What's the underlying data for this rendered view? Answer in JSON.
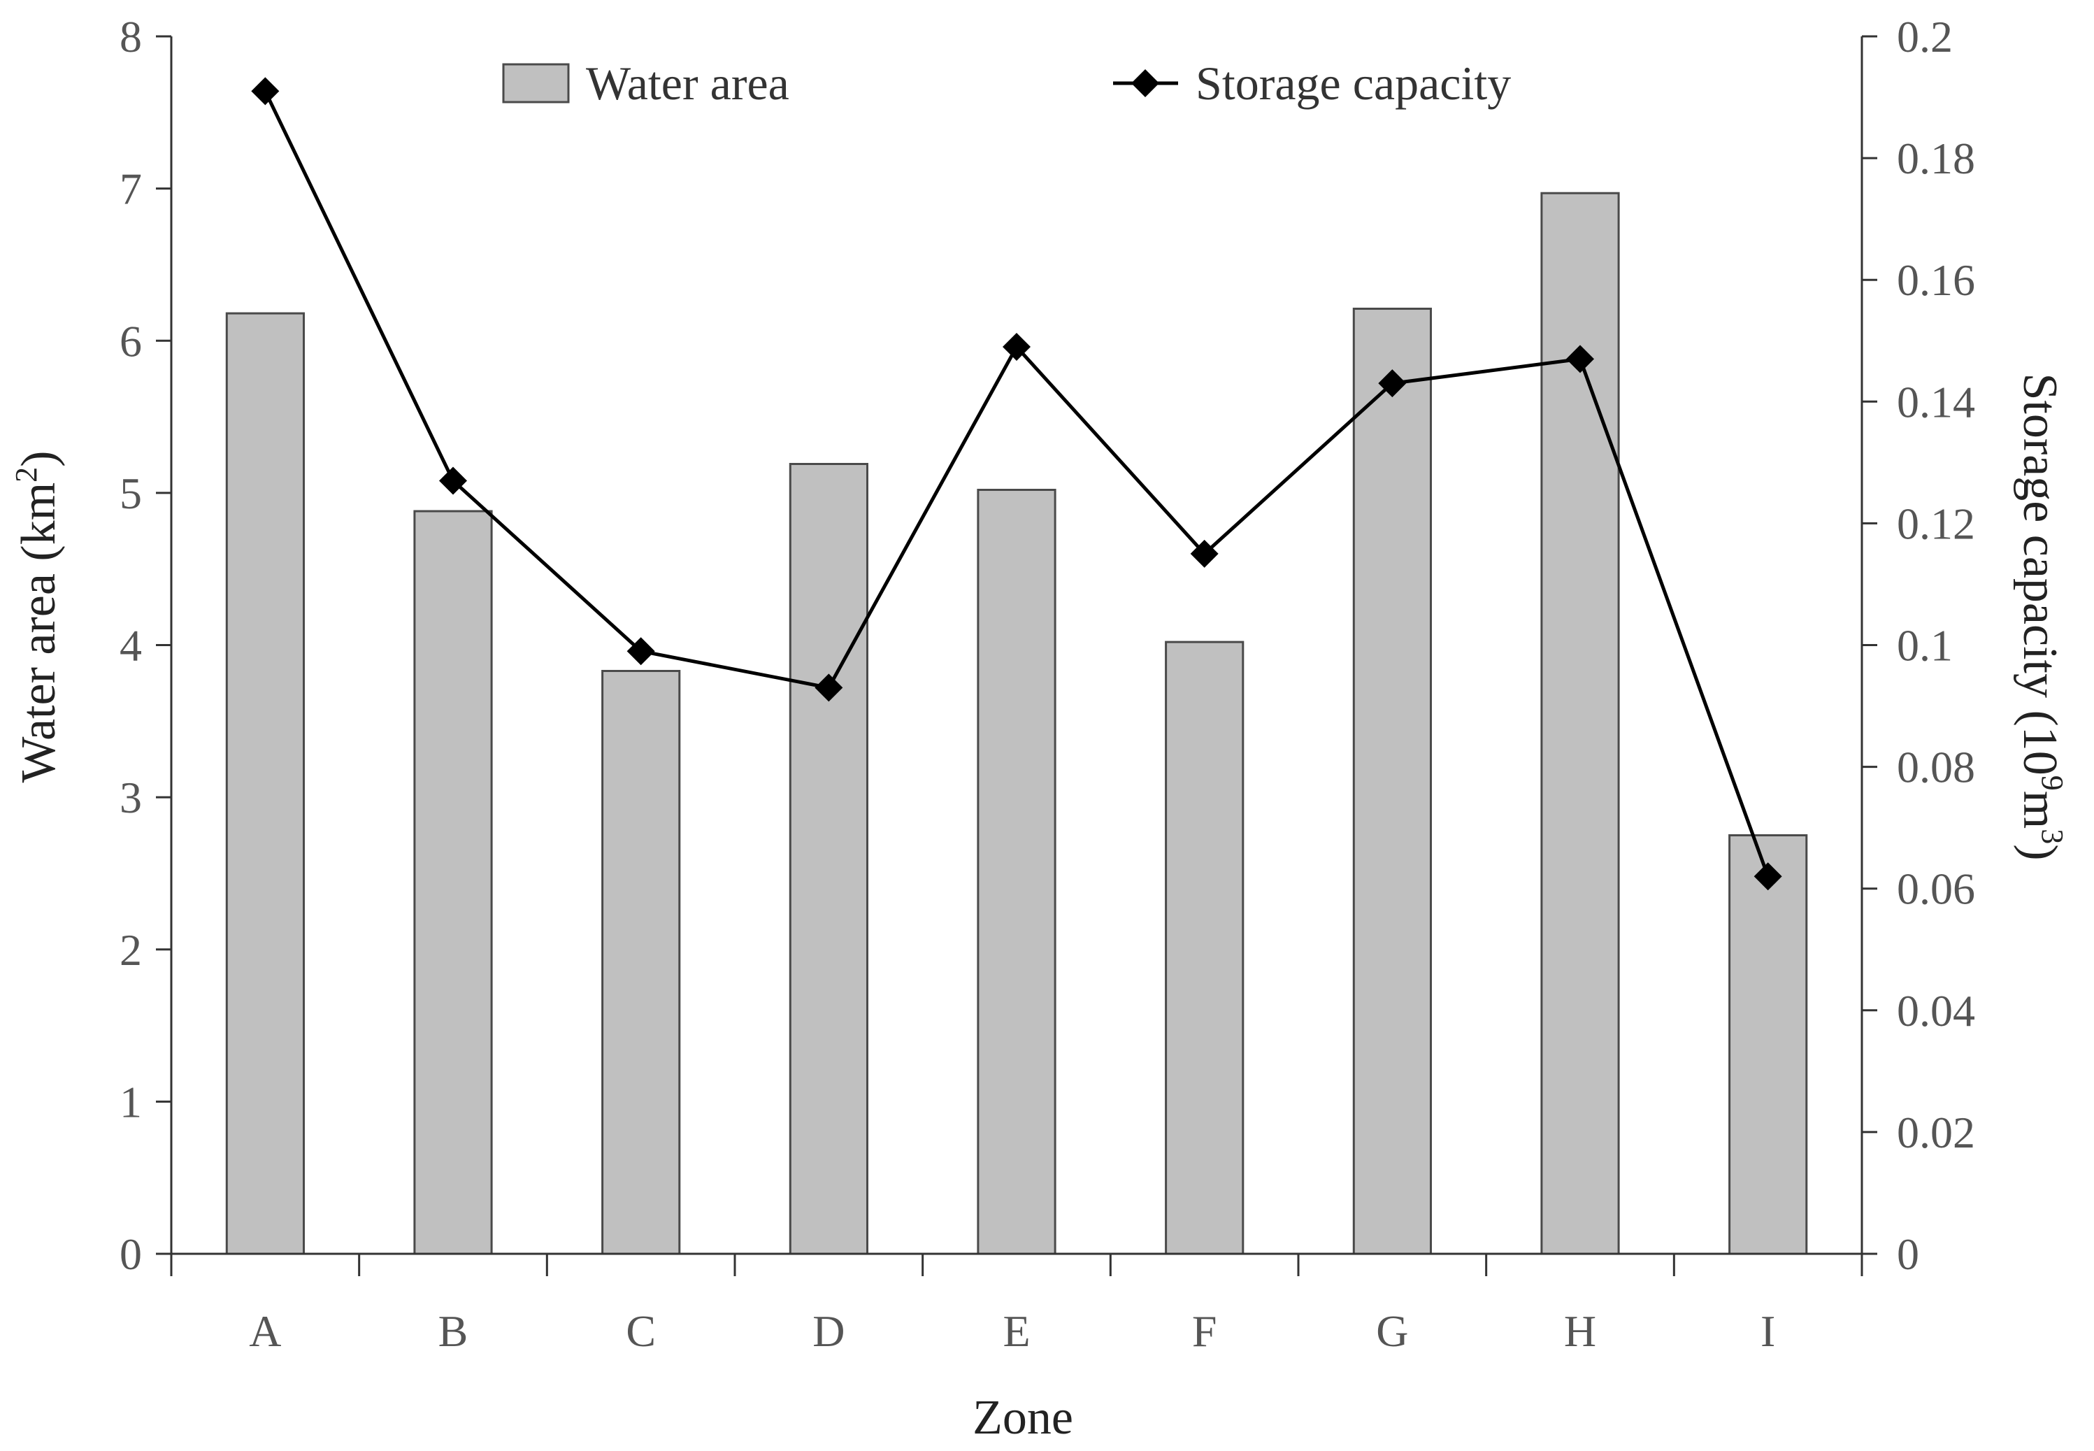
{
  "chart_data": {
    "type": "bar+line",
    "categories": [
      "A",
      "B",
      "C",
      "D",
      "E",
      "F",
      "G",
      "H",
      "I"
    ],
    "series": [
      {
        "name": "Water area",
        "kind": "bar",
        "axis": "left",
        "color": "#c0c0c0",
        "values": [
          6.18,
          4.88,
          3.83,
          5.19,
          5.02,
          4.02,
          6.21,
          6.97,
          2.75
        ]
      },
      {
        "name": "Storage capacity",
        "kind": "line",
        "axis": "right",
        "color": "#000000",
        "marker": "diamond",
        "values": [
          0.191,
          0.127,
          0.099,
          0.093,
          0.149,
          0.115,
          0.143,
          0.147,
          0.062
        ]
      }
    ],
    "xlabel": "Zone",
    "ylabel_left_main": "Water area (km",
    "ylabel_left_sup": "2",
    "ylabel_left_close": ")",
    "ylabel_right_main": "Storage capacity (10",
    "ylabel_right_sup1": "9",
    "ylabel_right_mid": "m",
    "ylabel_right_sup2": "3",
    "ylabel_right_close": ")",
    "ylim_left": [
      0,
      8
    ],
    "ylim_right": [
      0,
      0.2
    ],
    "yticks_left": [
      "0",
      "1",
      "2",
      "3",
      "4",
      "5",
      "6",
      "7",
      "8"
    ],
    "yticks_right": [
      "0",
      "0.02",
      "0.04",
      "0.06",
      "0.08",
      "0.1",
      "0.12",
      "0.14",
      "0.16",
      "0.18",
      "0.2"
    ],
    "legend": {
      "position": "top-center",
      "entries": [
        "Water area",
        "Storage capacity"
      ]
    },
    "grid": false
  }
}
